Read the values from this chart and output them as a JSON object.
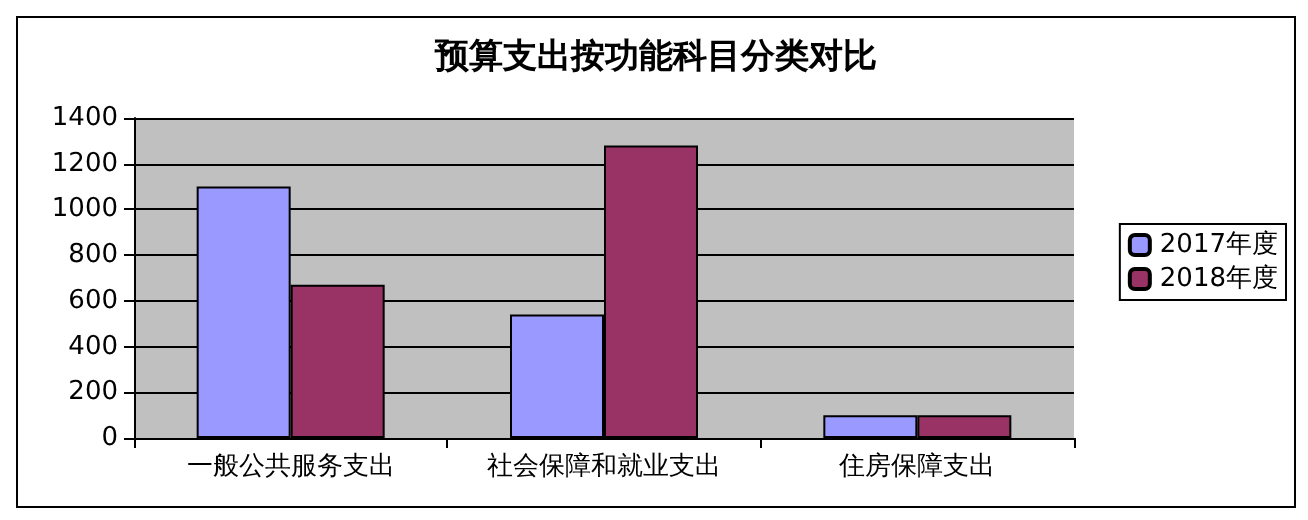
{
  "chart_data": {
    "type": "bar",
    "title": "预算支出按功能科目分类对比",
    "categories": [
      "一般公共服务支出",
      "社会保障和就业支出",
      "住房保障支出"
    ],
    "series": [
      {
        "name": "2017年度",
        "color": "#9999ff",
        "values": [
          1100,
          540,
          100
        ]
      },
      {
        "name": "2018年度",
        "color": "#993366",
        "values": [
          670,
          1280,
          100
        ]
      }
    ],
    "ylim": [
      0,
      1400
    ],
    "yticks": [
      0,
      200,
      400,
      600,
      800,
      1000,
      1200,
      1400
    ],
    "grid": "y",
    "legend": "right"
  }
}
